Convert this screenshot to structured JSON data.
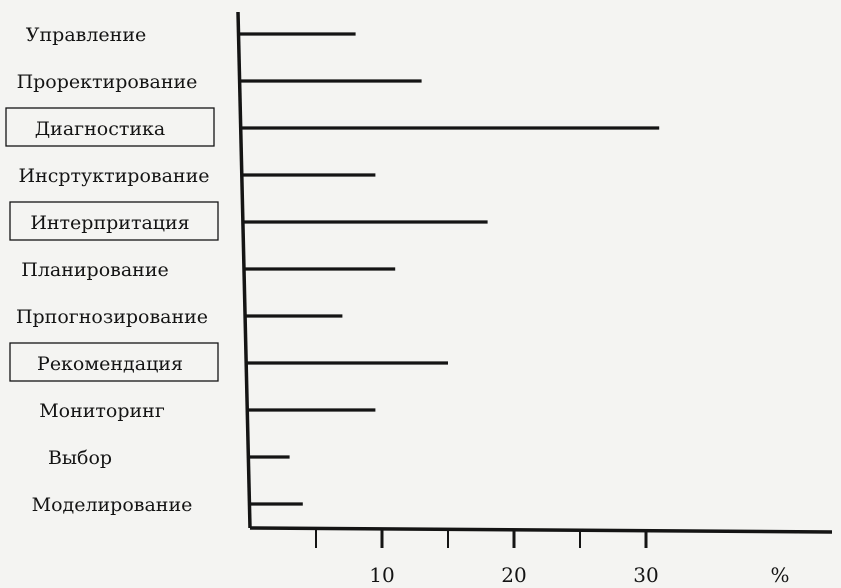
{
  "chart_data": {
    "type": "bar",
    "orientation": "horizontal",
    "title": "",
    "xlabel": "%",
    "ylabel": "",
    "categories": [
      "Управление",
      "Прорект­ирование",
      "Диагностика",
      "Инсртуктирование",
      "Интерпритация",
      "Планирование",
      "Прпогнозирование",
      "Рекомендация",
      "Мониторинг",
      "Выбор",
      "Моделирование"
    ],
    "values": [
      8,
      13,
      31,
      9.5,
      18,
      11,
      7,
      15,
      9.5,
      3,
      4
    ],
    "boxed_categories": [
      "Диагностика",
      "Интерпритация",
      "Рекомендация"
    ],
    "x_ticks": [
      10,
      20,
      30
    ],
    "x_tick_labels": [
      "10",
      "20",
      "30"
    ],
    "xlim": [
      0,
      40
    ],
    "grid": false,
    "legend": "none",
    "ink_color": "#141414",
    "background_color": "#f4f4f2"
  }
}
